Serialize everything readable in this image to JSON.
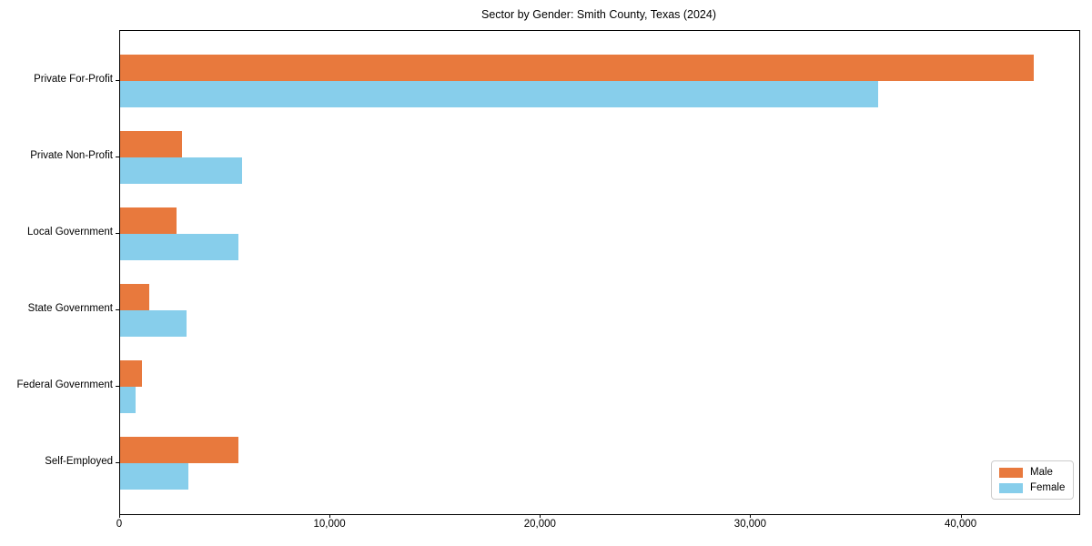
{
  "chart_data": {
    "type": "bar",
    "orientation": "horizontal",
    "title": "Sector by Gender: Smith County, Texas (2024)",
    "categories": [
      "Private For-Profit",
      "Private Non-Profit",
      "Local Government",
      "State Government",
      "Federal Government",
      "Self-Employed"
    ],
    "series": [
      {
        "name": "Male",
        "color": "#E8793D",
        "values": [
          43430,
          2940,
          2680,
          1390,
          1020,
          5630
        ]
      },
      {
        "name": "Female",
        "color": "#87CEEB",
        "values": [
          36020,
          5800,
          5630,
          3160,
          740,
          3250
        ]
      }
    ],
    "xlim": [
      0,
      45600
    ],
    "xticks": [
      0,
      10000,
      20000,
      30000,
      40000
    ],
    "xtick_labels": [
      "0",
      "10,000",
      "20,000",
      "30,000",
      "40,000"
    ],
    "ylabel": "",
    "xlabel": "",
    "grid": false,
    "legend_position": "lower right"
  },
  "colors": {
    "axis": "#000000",
    "background": "#ffffff",
    "legend_border": "#cccccc"
  }
}
